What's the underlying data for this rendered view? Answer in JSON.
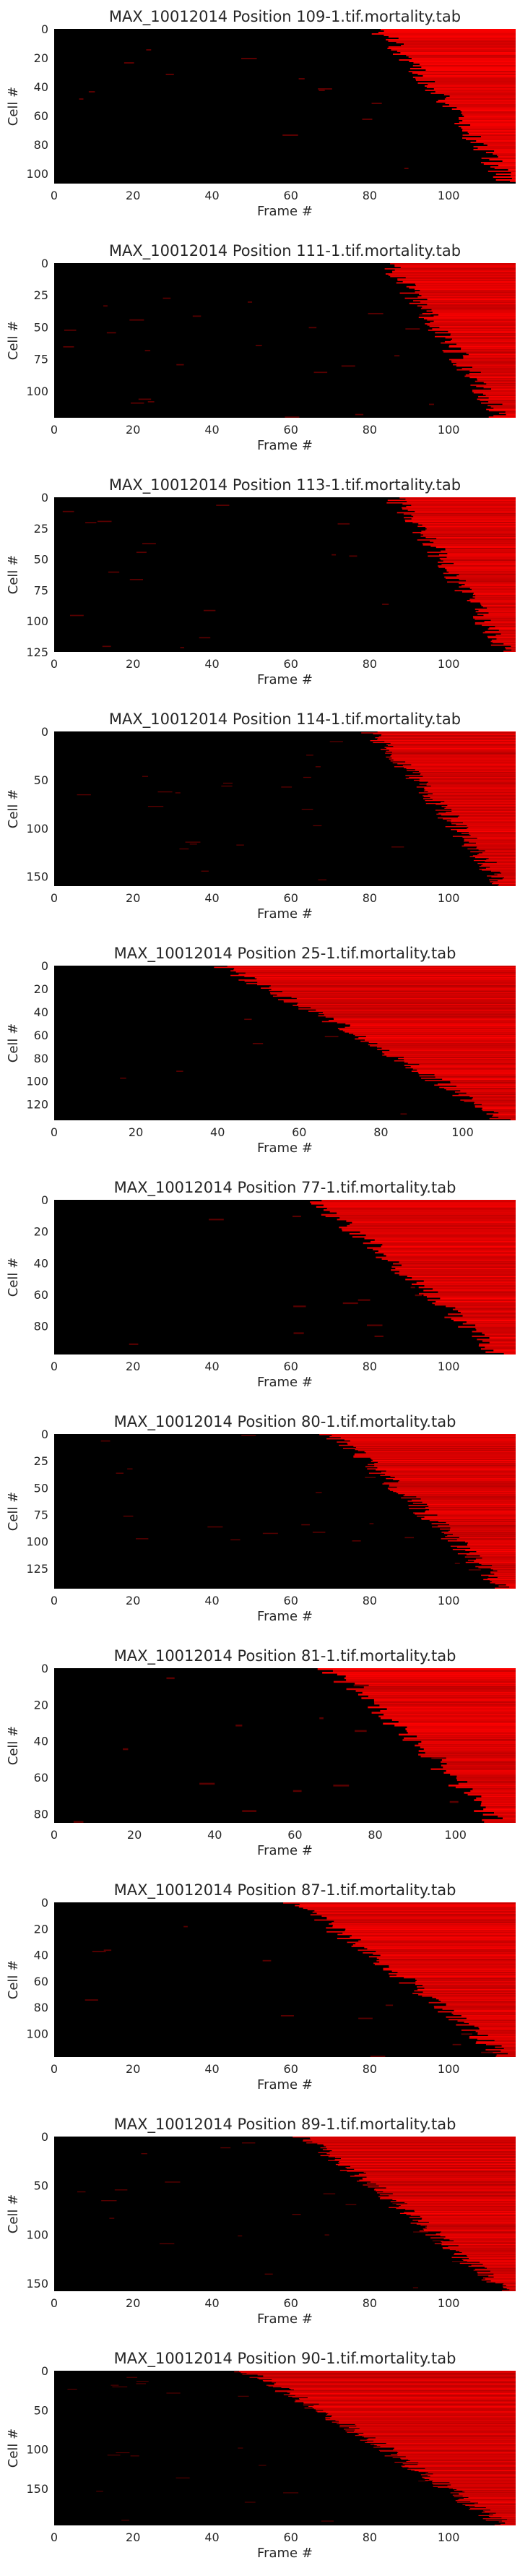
{
  "chart_data": [
    {
      "type": "heatmap",
      "title": "MAX_10012014 Position 109-1.tif.mortality.tab",
      "xlabel": "Frame #",
      "ylabel": "Cell #",
      "n_frames": 117,
      "n_cells": 107,
      "xticks": [
        "0",
        "20",
        "40",
        "60",
        "80",
        "100"
      ],
      "yticks": [
        0,
        20,
        40,
        60,
        80,
        100
      ],
      "death_onset_frames": {
        "first": 82,
        "last": 115
      },
      "colormap": [
        "#000000",
        "#ff0000"
      ]
    },
    {
      "type": "heatmap",
      "title": "MAX_10012014 Position 111-1.tif.mortality.tab",
      "xlabel": "Frame #",
      "ylabel": "Cell #",
      "n_frames": 117,
      "n_cells": 121,
      "xticks": [
        "0",
        "20",
        "40",
        "60",
        "80",
        "100"
      ],
      "yticks": [
        0,
        25,
        50,
        75,
        100
      ],
      "death_onset_frames": {
        "first": 84,
        "last": 113
      },
      "colormap": [
        "#000000",
        "#ff0000"
      ]
    },
    {
      "type": "heatmap",
      "title": "MAX_10012014 Position 113-1.tif.mortality.tab",
      "xlabel": "Frame #",
      "ylabel": "Cell #",
      "n_frames": 117,
      "n_cells": 125,
      "xticks": [
        "0",
        "20",
        "40",
        "60",
        "80",
        "100"
      ],
      "yticks": [
        0,
        25,
        50,
        75,
        100,
        125
      ],
      "death_onset_frames": {
        "first": 86,
        "last": 114
      },
      "colormap": [
        "#000000",
        "#ff0000"
      ]
    },
    {
      "type": "heatmap",
      "title": "MAX_10012014 Position 114-1.tif.mortality.tab",
      "xlabel": "Frame #",
      "ylabel": "Cell #",
      "n_frames": 117,
      "n_cells": 160,
      "xticks": [
        "0",
        "20",
        "40",
        "60",
        "80",
        "100"
      ],
      "yticks": [
        0,
        50,
        100,
        150
      ],
      "death_onset_frames": {
        "first": 80,
        "last": 114
      },
      "colormap": [
        "#000000",
        "#ff0000"
      ]
    },
    {
      "type": "heatmap",
      "title": "MAX_10012014 Position 25-1.tif.mortality.tab",
      "xlabel": "Frame #",
      "ylabel": "Cell #",
      "n_frames": 113,
      "n_cells": 134,
      "xticks": [
        "0",
        "20",
        "40",
        "60",
        "80",
        "100"
      ],
      "yticks": [
        0,
        20,
        40,
        60,
        80,
        100,
        120
      ],
      "death_onset_frames": {
        "first": 40,
        "last": 110
      },
      "colormap": [
        "#000000",
        "#ff0000"
      ]
    },
    {
      "type": "heatmap",
      "title": "MAX_10012014 Position 77-1.tif.mortality.tab",
      "xlabel": "Frame #",
      "ylabel": "Cell #",
      "n_frames": 117,
      "n_cells": 98,
      "xticks": [
        "0",
        "20",
        "40",
        "60",
        "80",
        "100"
      ],
      "yticks": [
        0,
        20,
        40,
        60,
        80
      ],
      "death_onset_frames": {
        "first": 65,
        "last": 112
      },
      "colormap": [
        "#000000",
        "#ff0000"
      ]
    },
    {
      "type": "heatmap",
      "title": "MAX_10012014 Position 80-1.tif.mortality.tab",
      "xlabel": "Frame #",
      "ylabel": "Cell #",
      "n_frames": 117,
      "n_cells": 144,
      "xticks": [
        "0",
        "20",
        "40",
        "60",
        "80",
        "100"
      ],
      "yticks": [
        0,
        25,
        50,
        75,
        100,
        125
      ],
      "death_onset_frames": {
        "first": 70,
        "last": 114
      },
      "colormap": [
        "#000000",
        "#ff0000"
      ]
    },
    {
      "type": "heatmap",
      "title": "MAX_10012014 Position 81-1.tif.mortality.tab",
      "xlabel": "Frame #",
      "ylabel": "Cell #",
      "n_frames": 115,
      "n_cells": 85,
      "xticks": [
        "0",
        "20",
        "40",
        "60",
        "80",
        "100"
      ],
      "yticks": [
        0,
        20,
        40,
        60,
        80
      ],
      "death_onset_frames": {
        "first": 68,
        "last": 110
      },
      "colormap": [
        "#000000",
        "#ff0000"
      ]
    },
    {
      "type": "heatmap",
      "title": "MAX_10012014 Position 87-1.tif.mortality.tab",
      "xlabel": "Frame #",
      "ylabel": "Cell #",
      "n_frames": 117,
      "n_cells": 118,
      "xticks": [
        "0",
        "20",
        "40",
        "60",
        "80",
        "100"
      ],
      "yticks": [
        0,
        20,
        40,
        60,
        80,
        100
      ],
      "death_onset_frames": {
        "first": 60,
        "last": 114
      },
      "colormap": [
        "#000000",
        "#ff0000"
      ]
    },
    {
      "type": "heatmap",
      "title": "MAX_10012014 Position 89-1.tif.mortality.tab",
      "xlabel": "Frame #",
      "ylabel": "Cell #",
      "n_frames": 117,
      "n_cells": 158,
      "xticks": [
        "0",
        "20",
        "40",
        "60",
        "80",
        "100"
      ],
      "yticks": [
        0,
        50,
        100,
        150
      ],
      "death_onset_frames": {
        "first": 62,
        "last": 114
      },
      "colormap": [
        "#000000",
        "#ff0000"
      ]
    },
    {
      "type": "heatmap",
      "title": "MAX_10012014 Position 90-1.tif.mortality.tab",
      "xlabel": "Frame #",
      "ylabel": "Cell #",
      "n_frames": 117,
      "n_cells": 197,
      "xticks": [
        "0",
        "20",
        "40",
        "60",
        "80",
        "100"
      ],
      "yticks": [
        0,
        50,
        100,
        150
      ],
      "death_onset_frames": {
        "first": 48,
        "last": 114
      },
      "colormap": [
        "#000000",
        "#ff0000"
      ]
    }
  ]
}
